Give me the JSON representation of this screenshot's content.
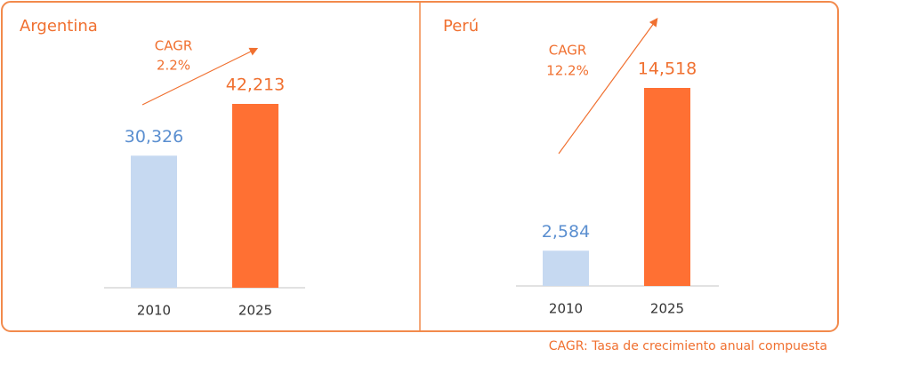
{
  "chart_data": [
    {
      "type": "bar",
      "title": "Argentina",
      "categories": [
        "2010",
        "2025"
      ],
      "values": [
        30326,
        42213
      ],
      "value_labels": [
        "30,326",
        "42,213"
      ],
      "colors": [
        "#c6d9f1",
        "#ff7033"
      ],
      "label_colors": [
        "#5b8fd0",
        "#f07030"
      ],
      "annotations": [
        "CAGR",
        "2.2%"
      ]
    },
    {
      "type": "bar",
      "title": "Perú",
      "categories": [
        "2010",
        "2025"
      ],
      "values": [
        2584,
        14518
      ],
      "value_labels": [
        "2,584",
        "14,518"
      ],
      "colors": [
        "#c6d9f1",
        "#ff7033"
      ],
      "label_colors": [
        "#5b8fd0",
        "#f07030"
      ],
      "annotations": [
        "CAGR",
        "12.2%"
      ]
    }
  ],
  "footnote": "CAGR: Tasa de crecimiento anual compuesta"
}
